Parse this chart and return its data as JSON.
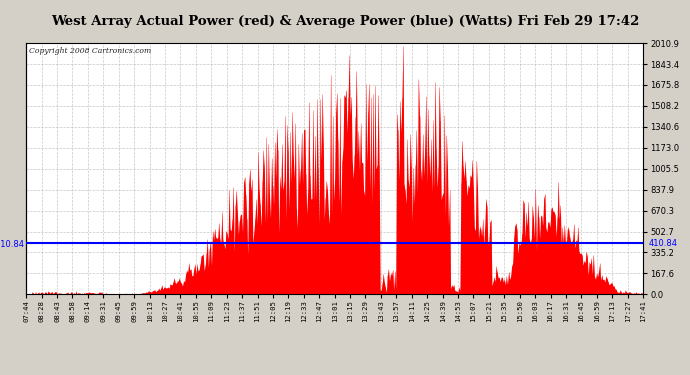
{
  "title": "West Array Actual Power (red) & Average Power (blue) (Watts) Fri Feb 29 17:42",
  "copyright": "Copyright 2008 Cartronics.com",
  "average_power": 410.84,
  "y_max": 2010.9,
  "y_ticks": [
    0.0,
    167.6,
    335.2,
    502.7,
    670.3,
    837.9,
    1005.5,
    1173.0,
    1340.6,
    1508.2,
    1675.8,
    1843.4,
    2010.9
  ],
  "y_tick_labels": [
    "0.0",
    "167.6",
    "335.2",
    "502.7",
    "670.3",
    "837.9",
    "1005.5",
    "1173.0",
    "1340.6",
    "1508.2",
    "1675.8",
    "1843.4",
    "2010.9"
  ],
  "x_labels": [
    "07:44",
    "08:28",
    "08:43",
    "08:58",
    "09:14",
    "09:31",
    "09:45",
    "09:59",
    "10:13",
    "10:27",
    "10:41",
    "10:55",
    "11:09",
    "11:23",
    "11:37",
    "11:51",
    "12:05",
    "12:19",
    "12:33",
    "12:47",
    "13:01",
    "13:15",
    "13:29",
    "13:43",
    "13:57",
    "14:11",
    "14:25",
    "14:39",
    "14:53",
    "15:07",
    "15:21",
    "15:35",
    "15:50",
    "16:03",
    "16:17",
    "16:31",
    "16:45",
    "16:59",
    "17:13",
    "17:27",
    "17:41"
  ],
  "bg_color": "#d4d0c8",
  "plot_bg": "#ffffff",
  "grid_color": "#aaaaaa",
  "red": "#ff0000",
  "blue": "#0000ff",
  "border_color": "#000000",
  "title_fontsize": 9.5,
  "copyright_fontsize": 5.5
}
